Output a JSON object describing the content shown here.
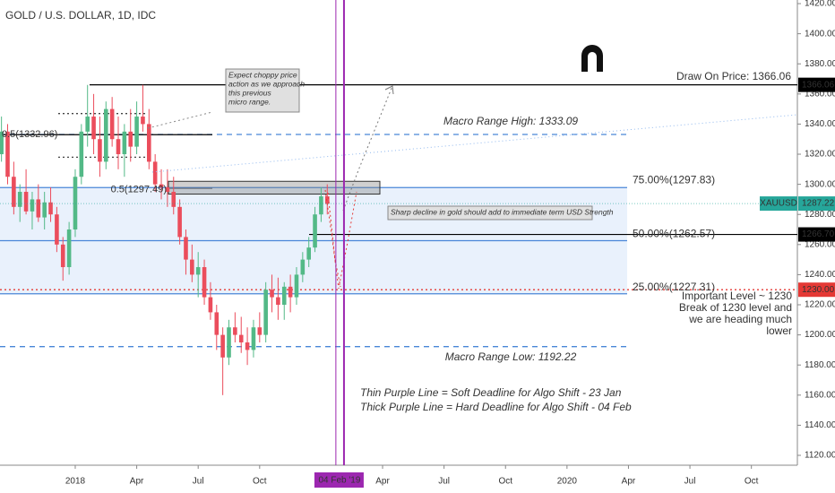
{
  "chart_data": {
    "type": "candlestick",
    "title": "GOLD / U.S. DOLLAR, 1D, IDC",
    "x": [
      2017.7,
      2017.725,
      2017.75,
      2017.775,
      2017.8,
      2017.825,
      2017.85,
      2017.875,
      2017.9,
      2017.925,
      2017.95,
      2017.975,
      2018.0,
      2018.025,
      2018.05,
      2018.075,
      2018.1,
      2018.125,
      2018.15,
      2018.175,
      2018.2,
      2018.225,
      2018.25,
      2018.275,
      2018.3,
      2018.325,
      2018.35,
      2018.375,
      2018.4,
      2018.425,
      2018.45,
      2018.475,
      2018.5,
      2018.525,
      2018.55,
      2018.575,
      2018.6,
      2018.625,
      2018.65,
      2018.675,
      2018.7,
      2018.725,
      2018.75,
      2018.775,
      2018.8,
      2018.825,
      2018.85,
      2018.875,
      2018.9,
      2018.925,
      2018.95,
      2018.975,
      2019.0,
      2019.025
    ],
    "open": [
      1320,
      1335,
      1305,
      1285,
      1295,
      1282,
      1290,
      1278,
      1288,
      1280,
      1260,
      1245,
      1270,
      1305,
      1335,
      1345,
      1330,
      1315,
      1350,
      1330,
      1320,
      1335,
      1325,
      1345,
      1340,
      1315,
      1300,
      1298,
      1295,
      1285,
      1265,
      1250,
      1240,
      1245,
      1225,
      1215,
      1200,
      1185,
      1205,
      1200,
      1195,
      1190,
      1205,
      1200,
      1230,
      1225,
      1220,
      1232,
      1225,
      1240,
      1250,
      1258,
      1280,
      1292
    ],
    "high": [
      1345,
      1340,
      1315,
      1300,
      1310,
      1295,
      1300,
      1295,
      1298,
      1285,
      1265,
      1275,
      1310,
      1340,
      1366,
      1360,
      1345,
      1355,
      1358,
      1345,
      1340,
      1350,
      1355,
      1366,
      1350,
      1320,
      1310,
      1310,
      1305,
      1290,
      1270,
      1260,
      1255,
      1250,
      1235,
      1220,
      1205,
      1210,
      1215,
      1212,
      1205,
      1210,
      1215,
      1235,
      1240,
      1238,
      1235,
      1240,
      1245,
      1255,
      1265,
      1285,
      1298,
      1300
    ],
    "low": [
      1315,
      1300,
      1280,
      1275,
      1280,
      1270,
      1275,
      1270,
      1275,
      1255,
      1236,
      1240,
      1265,
      1300,
      1325,
      1320,
      1305,
      1310,
      1325,
      1310,
      1305,
      1315,
      1320,
      1335,
      1310,
      1295,
      1290,
      1285,
      1280,
      1260,
      1240,
      1235,
      1225,
      1220,
      1210,
      1190,
      1160,
      1180,
      1195,
      1188,
      1180,
      1185,
      1195,
      1195,
      1215,
      1210,
      1210,
      1215,
      1220,
      1235,
      1245,
      1255,
      1275,
      1280
    ],
    "close": [
      1335,
      1305,
      1285,
      1295,
      1282,
      1290,
      1278,
      1288,
      1280,
      1260,
      1245,
      1270,
      1305,
      1335,
      1345,
      1330,
      1315,
      1350,
      1330,
      1320,
      1335,
      1325,
      1345,
      1340,
      1315,
      1300,
      1298,
      1295,
      1285,
      1265,
      1250,
      1240,
      1245,
      1225,
      1215,
      1200,
      1185,
      1205,
      1200,
      1195,
      1190,
      1205,
      1200,
      1230,
      1225,
      1220,
      1232,
      1225,
      1240,
      1250,
      1258,
      1280,
      1292,
      1287
    ],
    "up_color": "#53b987",
    "down_color": "#eb4d5c",
    "xlim": [
      2017.694,
      2020.937
    ],
    "xticks": [
      {
        "value": 2018,
        "label": "2018"
      },
      {
        "value": 2018.25,
        "label": "Apr"
      },
      {
        "value": 2018.5,
        "label": "Jul"
      },
      {
        "value": 2018.75,
        "label": "Oct"
      },
      {
        "value": 2019.25,
        "label": "Apr"
      },
      {
        "value": 2019.5,
        "label": "Jul"
      },
      {
        "value": 2019.75,
        "label": "Oct"
      },
      {
        "value": 2020,
        "label": "2020"
      },
      {
        "value": 2020.25,
        "label": "Apr"
      },
      {
        "value": 2020.5,
        "label": "Jul"
      },
      {
        "value": 2020.75,
        "label": "Oct"
      }
    ],
    "ylim": [
      1113.45,
      1422.4
    ],
    "yticks": [
      {
        "value": 1120,
        "label": "1120.00"
      },
      {
        "value": 1140,
        "label": "1140.00"
      },
      {
        "value": 1160,
        "label": "1160.00"
      },
      {
        "value": 1180,
        "label": "1180.00"
      },
      {
        "value": 1200,
        "label": "1200.00"
      },
      {
        "value": 1220,
        "label": "1220.00"
      },
      {
        "value": 1240,
        "label": "1240.00"
      },
      {
        "value": 1260,
        "label": "1260.00"
      },
      {
        "value": 1280,
        "label": "1280.00"
      },
      {
        "value": 1300,
        "label": "1300.00"
      },
      {
        "value": 1320,
        "label": "1320.00"
      },
      {
        "value": 1340,
        "label": "1340.00"
      },
      {
        "value": 1360,
        "label": "1360.00"
      },
      {
        "value": 1380,
        "label": "1380.00"
      },
      {
        "value": 1400,
        "label": "1400.00"
      },
      {
        "value": 1420,
        "label": "1420.00"
      }
    ],
    "levels": [
      {
        "value": 1366.06,
        "color": "#000000",
        "style": "solid",
        "text": "Draw On Price: 1366.06",
        "badge": true
      },
      {
        "value": 1333.09,
        "color": "#4a86d8",
        "style": "dashed",
        "text": "Macro Range High: 1333.09"
      },
      {
        "value": 1332.96,
        "color": "#000000",
        "style": "solid",
        "text": "0.5(1332.96)"
      },
      {
        "value": 1297.49,
        "color": "#000000",
        "style": "solid",
        "text": "0.5(1297.49)"
      },
      {
        "value": 1297.83,
        "color": "#4a86d8",
        "style": "solid",
        "text": "75.00%(1297.83)"
      },
      {
        "value": 1262.57,
        "color": "#4a86d8",
        "style": "solid",
        "text": "50.00%(1262.57)"
      },
      {
        "value": 1227.31,
        "color": "#4a86d8",
        "style": "solid",
        "text": "25.00%(1227.31)"
      },
      {
        "value": 1266.7,
        "color": "#000000",
        "style": "solid",
        "badge_label": "1266.70"
      },
      {
        "value": 1230,
        "color": "#e53935",
        "style": "dotted",
        "badge_label": "1230.00"
      },
      {
        "value": 1192.22,
        "color": "#4a86d8",
        "style": "dashed",
        "text": "Macro Range Low: 1192.22"
      },
      {
        "value": 1347,
        "color": "#444444",
        "style": "dotted"
      },
      {
        "value": 1318,
        "color": "#444444",
        "style": "dotted"
      }
    ],
    "zone": [
      1293.5,
      1302
    ],
    "last_price": {
      "name": "XAUUSD",
      "value": 1287.22,
      "color": "#26a69a"
    },
    "red_note": [
      "Important Level ~ 1230",
      "Break of 1230 level and",
      "we are heading much",
      "lower"
    ],
    "callouts": [
      [
        "Expect choppy price",
        "action as we approach",
        "this previous",
        "micro range."
      ],
      [
        "Sharp decline in gold should add to immediate term USD Strength"
      ]
    ],
    "deadlines": [
      {
        "x": 2019.06,
        "width": 1
      },
      {
        "x": 2019.093,
        "width": 2,
        "label": "04 Feb '19"
      }
    ],
    "deadline_color": "#9c27b0",
    "purple_notes": [
      "Thin Purple Line = Soft Deadline for Algo Shift - 23 Jan",
      "Thick Purple Line = Hard Deadline for Algo Shift - 04 Feb"
    ]
  }
}
